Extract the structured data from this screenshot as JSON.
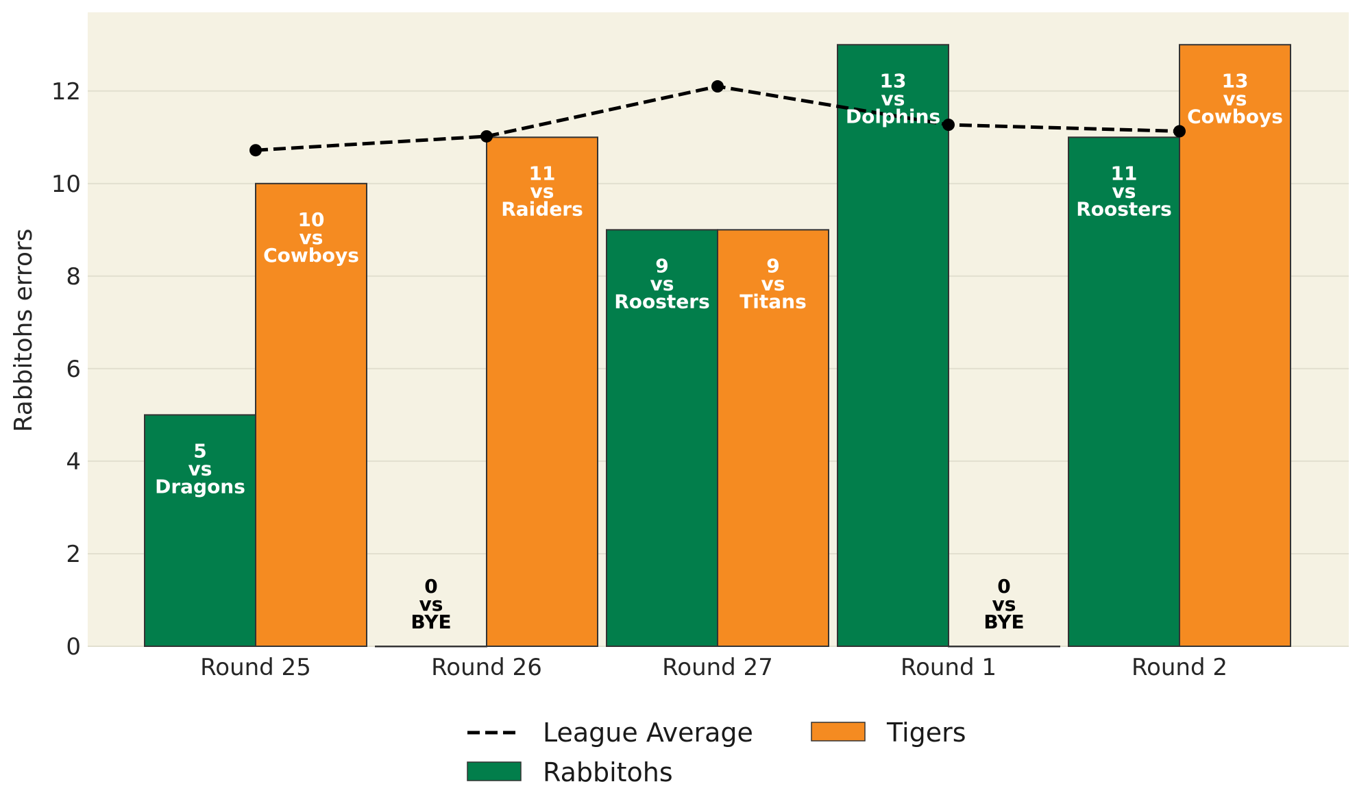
{
  "chart_data": {
    "type": "bar",
    "categories": [
      "Round 25",
      "Round 26",
      "Round 27",
      "Round 1",
      "Round 2"
    ],
    "series": [
      {
        "name": "Rabbitohs",
        "color": "#027E4B",
        "values": [
          5,
          0,
          9,
          13,
          11
        ],
        "opponents": [
          "Dragons",
          "BYE",
          "Roosters",
          "Dolphins",
          "Roosters"
        ]
      },
      {
        "name": "Tigers",
        "color": "#F58B21",
        "values": [
          10,
          11,
          9,
          0,
          13
        ],
        "opponents": [
          "Cowboys",
          "Raiders",
          "Titans",
          "BYE",
          "Cowboys"
        ]
      }
    ],
    "line": {
      "name": "League Average",
      "color": "#000000",
      "style": "dashed",
      "values": [
        10.72,
        11.02,
        12.1,
        11.27,
        11.13
      ]
    },
    "vs_text": "vs",
    "ylabel": "Rabbitohs errors",
    "xlabel": "",
    "ylim": [
      0,
      13.7
    ],
    "yticks": [
      0,
      2,
      4,
      6,
      8,
      10,
      12
    ],
    "grid": "horizontal",
    "background": "#F5F2E3",
    "legend_position": "bottom-center"
  }
}
